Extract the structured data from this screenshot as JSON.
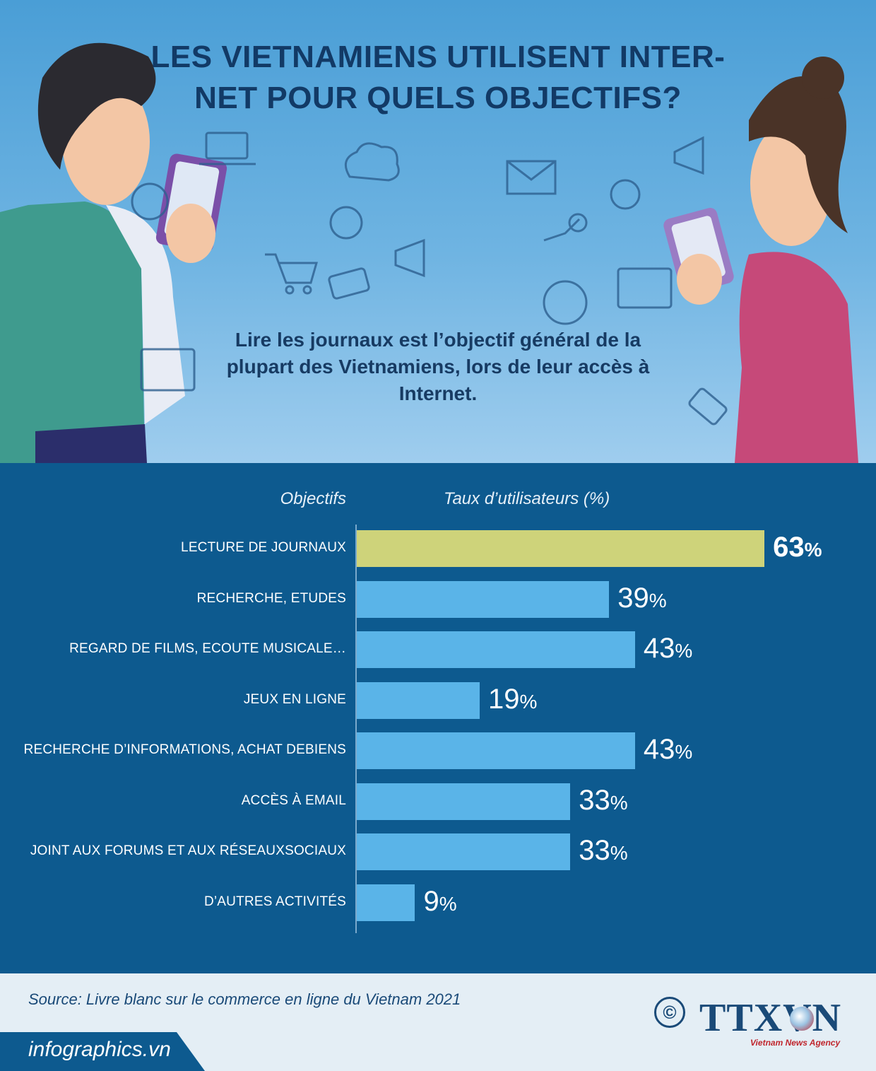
{
  "hero": {
    "title": "LES VIETNAMIENS UTILISENT INTER-NET POUR QUELS OBJECTIFS?",
    "subtitle": "Lire les journaux est l’objectif général de la plupart des Vietnamiens, lors de leur accès à Internet.",
    "decor_icons": [
      "laptop-icon",
      "cloud-sync-icon",
      "email-icon",
      "megaphone-icon",
      "lightbulb-icon",
      "globe-icon",
      "pointer-hand-icon",
      "shopping-cart-icon",
      "seo-tag-icon",
      "code-window-icon"
    ]
  },
  "chart_data": {
    "type": "bar",
    "orientation": "horizontal",
    "category_header": "Objectifs",
    "value_header": "Taux d’utilisateurs (%)",
    "categories": [
      "LECTURE DE JOURNAUX",
      "RECHERCHE, ETUDES",
      "REGARD DE FILMS, ECOUTE MUSICALE…",
      "JEUX EN LIGNE",
      "RECHERCHE D’INFORMATIONS, ACHAT DEBIENS",
      "ACCÈS À EMAIL",
      "JOINT AUX FORUMS ET AUX RÉSEAUXSOCIAUX",
      "D’AUTRES ACTIVITÉS"
    ],
    "values": [
      63,
      39,
      43,
      19,
      43,
      33,
      33,
      9
    ],
    "value_labels": [
      "63",
      "39",
      "43",
      "19",
      "43",
      "33",
      "33",
      "9"
    ],
    "unit": "%",
    "highlight_index": 0,
    "colors": {
      "bar": "#5ab4e8",
      "highlight": "#ced37a",
      "background": "#0d5a8f"
    }
  },
  "footer": {
    "source": "Source: Livre blanc sur le commerce en ligne du Vietnam 2021",
    "site": "infographics.vn",
    "copyright_symbol": "©",
    "logo_text": "TTXVN",
    "logo_subtitle": "Vietnam News Agency"
  }
}
